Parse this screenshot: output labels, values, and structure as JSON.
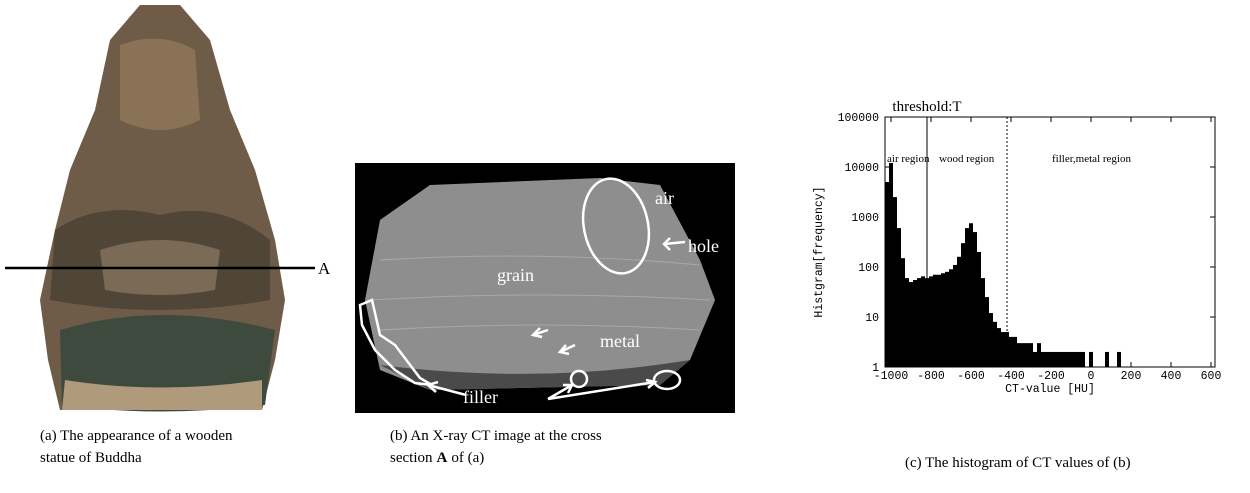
{
  "captions": {
    "a": [
      "(a) The appearance of a wooden",
      "statue of Buddha"
    ],
    "b": [
      "(b) An X-ray CT image at the cross",
      "section",
      "A",
      "of (a)"
    ],
    "c": "(c) The histogram of CT values of (b)"
  },
  "figure_a": {
    "section_label": "A"
  },
  "figure_b": {
    "labels": [
      "air",
      "hole",
      "grain",
      "metal",
      "filler"
    ]
  },
  "chart_data": {
    "type": "histogram",
    "ylabel": "Histgram[frequency]",
    "xlabel": "CT-value [HU]",
    "bins": [
      -1030,
      -1010,
      -990,
      -970,
      -950,
      -930,
      -910,
      -890,
      -870,
      -850,
      -830,
      -810,
      -790,
      -770,
      -750,
      -730,
      -710,
      -690,
      -670,
      -650,
      -630,
      -610,
      -590,
      -570,
      -550,
      -530,
      -510,
      -490,
      -470,
      -450,
      -430,
      -410,
      -390,
      -370,
      -350,
      -330,
      -310,
      -290,
      -270,
      -250,
      -230,
      -210,
      -190,
      -170,
      -150,
      -130,
      -110,
      -90,
      -70,
      -50,
      -30,
      -10,
      10,
      30,
      50,
      70,
      90,
      110,
      130,
      150
    ],
    "counts": [
      5000,
      12000,
      2500,
      600,
      150,
      60,
      50,
      55,
      60,
      65,
      60,
      65,
      70,
      70,
      75,
      80,
      90,
      110,
      160,
      300,
      600,
      750,
      500,
      200,
      60,
      25,
      12,
      8,
      6,
      5,
      5,
      4,
      4,
      3,
      3,
      3,
      3,
      2,
      3,
      2,
      2,
      2,
      2,
      2,
      2,
      2,
      2,
      2,
      2,
      2,
      1,
      2,
      1,
      1,
      1,
      2,
      1,
      1,
      2
    ],
    "color": "#000000",
    "xlim": [
      -1030,
      620
    ],
    "ylim": [
      1,
      100000
    ],
    "log_y": true,
    "xticks": [
      -1000,
      -800,
      -600,
      -400,
      -200,
      0,
      200,
      400,
      600
    ],
    "yticks": [
      1,
      10,
      100,
      1000,
      10000,
      100000
    ],
    "threshold": {
      "label": "threshold:T",
      "value": -820
    },
    "boundary": {
      "value": -420,
      "style": "dotted"
    },
    "regions": [
      "air region",
      "wood region",
      "filler,metal region"
    ]
  }
}
